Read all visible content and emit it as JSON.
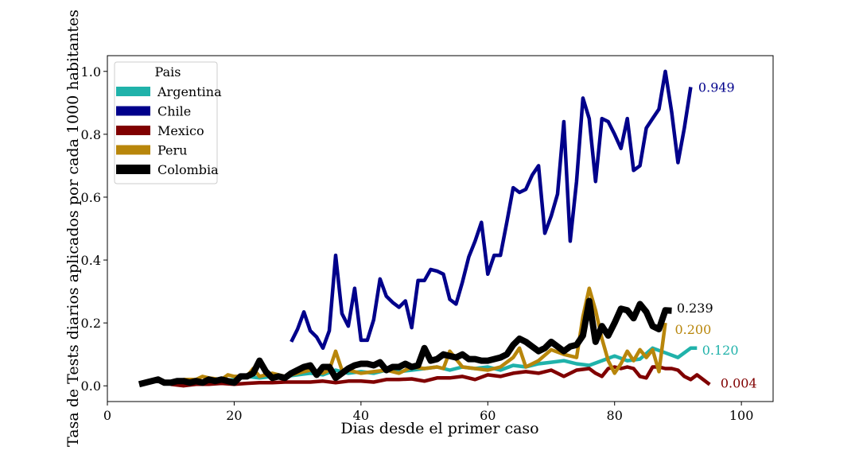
{
  "chart_data": {
    "type": "line",
    "title": "",
    "xlabel": "Dias desde el primer caso",
    "ylabel": "Tasa de Tests diarios aplicados por cada 1000 habitantes",
    "xlim": [
      0,
      105
    ],
    "ylim": [
      -0.05,
      1.05
    ],
    "xticks": [
      0,
      20,
      40,
      60,
      80,
      100
    ],
    "yticks": [
      0.0,
      0.2,
      0.4,
      0.6,
      0.8,
      1.0
    ],
    "xtick_labels": [
      "0",
      "20",
      "40",
      "60",
      "80",
      "100"
    ],
    "ytick_labels": [
      "0.0",
      "0.2",
      "0.4",
      "0.6",
      "0.8",
      "1.0"
    ],
    "grid": false,
    "legend": {
      "title": "Pais",
      "placement": "top-left"
    },
    "series": [
      {
        "name": "Argentina",
        "color": "#20b2aa",
        "end_label": "0.120",
        "x": [
          10,
          12,
          14,
          16,
          18,
          20,
          22,
          24,
          26,
          28,
          30,
          32,
          34,
          36,
          38,
          40,
          42,
          44,
          46,
          48,
          50,
          52,
          54,
          56,
          58,
          60,
          62,
          64,
          66,
          68,
          70,
          72,
          74,
          76,
          78,
          80,
          82,
          84,
          86,
          88,
          90,
          92,
          93
        ],
        "y": [
          0.01,
          0.015,
          0.01,
          0.02,
          0.015,
          0.02,
          0.03,
          0.025,
          0.03,
          0.03,
          0.035,
          0.04,
          0.035,
          0.05,
          0.04,
          0.045,
          0.04,
          0.05,
          0.045,
          0.05,
          0.055,
          0.06,
          0.05,
          0.06,
          0.055,
          0.06,
          0.05,
          0.065,
          0.06,
          0.07,
          0.075,
          0.08,
          0.07,
          0.065,
          0.08,
          0.095,
          0.08,
          0.085,
          0.12,
          0.105,
          0.09,
          0.12,
          0.12
        ]
      },
      {
        "name": "Chile",
        "color": "#00008b",
        "end_label": "0.949",
        "x": [
          29,
          30,
          31,
          32,
          33,
          34,
          35,
          36,
          37,
          38,
          39,
          40,
          41,
          42,
          43,
          44,
          45,
          46,
          47,
          48,
          49,
          50,
          51,
          52,
          53,
          54,
          55,
          56,
          57,
          58,
          59,
          60,
          61,
          62,
          63,
          64,
          65,
          66,
          67,
          68,
          69,
          70,
          71,
          72,
          73,
          74,
          75,
          76,
          77,
          78,
          79,
          80,
          81,
          82,
          83,
          84,
          85,
          86,
          87,
          88,
          89,
          90,
          91,
          92
        ],
        "y": [
          0.14,
          0.18,
          0.235,
          0.175,
          0.155,
          0.12,
          0.175,
          0.415,
          0.23,
          0.19,
          0.31,
          0.145,
          0.145,
          0.21,
          0.34,
          0.285,
          0.265,
          0.25,
          0.27,
          0.185,
          0.335,
          0.335,
          0.37,
          0.365,
          0.355,
          0.275,
          0.26,
          0.33,
          0.41,
          0.46,
          0.52,
          0.355,
          0.415,
          0.415,
          0.52,
          0.63,
          0.615,
          0.625,
          0.67,
          0.7,
          0.485,
          0.54,
          0.61,
          0.84,
          0.46,
          0.65,
          0.915,
          0.85,
          0.65,
          0.85,
          0.84,
          0.8,
          0.755,
          0.85,
          0.685,
          0.7,
          0.82,
          0.85,
          0.88,
          1.0,
          0.87,
          0.71,
          0.82,
          0.95
        ]
      },
      {
        "name": "Mexico",
        "color": "#800000",
        "end_label": "0.004",
        "x": [
          10,
          12,
          14,
          16,
          18,
          20,
          22,
          24,
          26,
          28,
          30,
          32,
          34,
          36,
          38,
          40,
          42,
          44,
          46,
          48,
          50,
          52,
          54,
          56,
          58,
          60,
          62,
          64,
          66,
          68,
          70,
          72,
          74,
          76,
          77,
          78,
          79,
          80,
          81,
          82,
          83,
          84,
          85,
          86,
          87,
          88,
          89,
          90,
          91,
          92,
          93,
          95
        ],
        "y": [
          0.005,
          0.0,
          0.005,
          0.005,
          0.008,
          0.005,
          0.008,
          0.01,
          0.01,
          0.012,
          0.012,
          0.012,
          0.015,
          0.01,
          0.015,
          0.015,
          0.012,
          0.02,
          0.02,
          0.022,
          0.015,
          0.025,
          0.025,
          0.03,
          0.02,
          0.035,
          0.03,
          0.04,
          0.045,
          0.04,
          0.05,
          0.03,
          0.05,
          0.055,
          0.04,
          0.03,
          0.055,
          0.06,
          0.055,
          0.06,
          0.055,
          0.03,
          0.025,
          0.06,
          0.06,
          0.055,
          0.055,
          0.05,
          0.03,
          0.02,
          0.035,
          0.004
        ]
      },
      {
        "name": "Peru",
        "color": "#b8860b",
        "end_label": "0.200",
        "x": [
          12,
          14,
          15,
          16,
          18,
          19,
          20,
          22,
          23,
          24,
          26,
          28,
          30,
          32,
          34,
          35,
          36,
          37,
          38,
          40,
          42,
          44,
          46,
          48,
          50,
          52,
          53,
          54,
          56,
          58,
          60,
          62,
          64,
          65,
          66,
          68,
          70,
          72,
          74,
          75,
          76,
          77,
          78,
          79,
          80,
          81,
          82,
          83,
          84,
          85,
          86,
          87,
          88
        ],
        "y": [
          0.02,
          0.02,
          0.03,
          0.025,
          0.02,
          0.035,
          0.03,
          0.03,
          0.055,
          0.03,
          0.04,
          0.03,
          0.04,
          0.05,
          0.04,
          0.05,
          0.11,
          0.05,
          0.05,
          0.04,
          0.045,
          0.05,
          0.04,
          0.06,
          0.055,
          0.06,
          0.055,
          0.11,
          0.06,
          0.055,
          0.05,
          0.06,
          0.09,
          0.12,
          0.06,
          0.08,
          0.115,
          0.1,
          0.09,
          0.22,
          0.31,
          0.24,
          0.15,
          0.08,
          0.04,
          0.07,
          0.11,
          0.08,
          0.115,
          0.09,
          0.115,
          0.045,
          0.2
        ]
      },
      {
        "name": "Colombia",
        "color": "#000000",
        "end_label": "0.239",
        "x": [
          5,
          6,
          7,
          8,
          9,
          10,
          11,
          12,
          13,
          14,
          15,
          16,
          17,
          18,
          19,
          20,
          21,
          22,
          23,
          24,
          25,
          26,
          27,
          28,
          29,
          30,
          31,
          32,
          33,
          34,
          35,
          36,
          37,
          38,
          39,
          40,
          41,
          42,
          43,
          44,
          45,
          46,
          47,
          48,
          49,
          50,
          51,
          52,
          53,
          54,
          55,
          56,
          57,
          58,
          59,
          60,
          61,
          62,
          63,
          64,
          65,
          66,
          67,
          68,
          69,
          70,
          71,
          72,
          73,
          74,
          75,
          76,
          77,
          78,
          79,
          80,
          81,
          82,
          83,
          84,
          85,
          86,
          87,
          88,
          89
        ],
        "y": [
          0.005,
          0.01,
          0.015,
          0.02,
          0.01,
          0.01,
          0.015,
          0.015,
          0.01,
          0.015,
          0.01,
          0.02,
          0.015,
          0.02,
          0.015,
          0.01,
          0.03,
          0.03,
          0.04,
          0.08,
          0.045,
          0.025,
          0.03,
          0.025,
          0.04,
          0.05,
          0.06,
          0.065,
          0.035,
          0.06,
          0.06,
          0.025,
          0.04,
          0.055,
          0.065,
          0.07,
          0.07,
          0.065,
          0.075,
          0.05,
          0.06,
          0.06,
          0.07,
          0.06,
          0.065,
          0.12,
          0.08,
          0.085,
          0.1,
          0.095,
          0.09,
          0.1,
          0.085,
          0.085,
          0.08,
          0.08,
          0.085,
          0.09,
          0.1,
          0.13,
          0.15,
          0.14,
          0.125,
          0.11,
          0.12,
          0.14,
          0.125,
          0.11,
          0.125,
          0.13,
          0.16,
          0.27,
          0.14,
          0.19,
          0.16,
          0.2,
          0.245,
          0.24,
          0.215,
          0.26,
          0.235,
          0.19,
          0.18,
          0.24,
          0.239
        ]
      }
    ]
  }
}
